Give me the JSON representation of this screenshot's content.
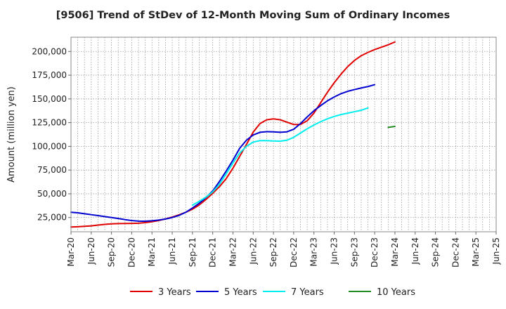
{
  "chart_data": {
    "type": "line",
    "title": "[9506]  Trend of StDev of 12-Month Moving Sum of Ordinary Incomes",
    "xlabel": "",
    "ylabel": "Amount (million yen)",
    "ylim": [
      10000,
      215000
    ],
    "yticks": [
      25000,
      50000,
      75000,
      100000,
      125000,
      150000,
      175000,
      200000
    ],
    "ytick_labels": [
      "25,000",
      "50,000",
      "75,000",
      "100,000",
      "125,000",
      "150,000",
      "175,000",
      "200,000"
    ],
    "xticks": [
      "Mar-20",
      "Jun-20",
      "Sep-20",
      "Dec-20",
      "Mar-21",
      "Jun-21",
      "Sep-21",
      "Dec-21",
      "Mar-22",
      "Jun-22",
      "Sep-22",
      "Dec-22",
      "Mar-23",
      "Jun-23",
      "Sep-23",
      "Dec-23",
      "Mar-24",
      "Jun-24",
      "Sep-24",
      "Dec-24",
      "Mar-25",
      "Jun-25"
    ],
    "grid": true,
    "legend_position": "bottom",
    "series": [
      {
        "name": "3 Years",
        "color": "#e00000",
        "start_index": 0,
        "values": [
          15000,
          15300,
          15700,
          16200,
          17000,
          17800,
          18300,
          18600,
          18700,
          18800,
          19000,
          19600,
          20500,
          21800,
          23500,
          25500,
          27800,
          30500,
          33800,
          38200,
          44000,
          50500,
          57500,
          66000,
          77000,
          89500,
          102000,
          115000,
          124000,
          128000,
          129000,
          128000,
          125500,
          123000,
          123000,
          127000,
          135000,
          146000,
          157000,
          167000,
          176000,
          184000,
          190500,
          195500,
          199000,
          202000,
          204500,
          207000,
          210000
        ]
      },
      {
        "name": "5 Years",
        "color": "#0000d0",
        "start_index": 0,
        "values": [
          30500,
          30000,
          29000,
          28000,
          27000,
          26000,
          25000,
          24000,
          22800,
          21800,
          21200,
          21100,
          21600,
          22300,
          23400,
          25000,
          27200,
          30500,
          35000,
          40000,
          46000,
          53000,
          63000,
          74000,
          85500,
          98000,
          106500,
          112000,
          114800,
          115500,
          115300,
          114800,
          115300,
          118000,
          124000,
          131000,
          137500,
          143000,
          148000,
          152000,
          155500,
          158000,
          159800,
          161500,
          163000,
          165000
        ]
      },
      {
        "name": "7 Years",
        "color": "#00eeee",
        "start_index": 18,
        "values": [
          38000,
          42000,
          46500,
          52000,
          60000,
          71000,
          82500,
          93000,
          100000,
          104500,
          106000,
          106000,
          105700,
          105500,
          106500,
          109500,
          114000,
          118500,
          122500,
          126000,
          129000,
          131500,
          133500,
          135000,
          136500,
          138000,
          140500
        ]
      },
      {
        "name": "10 Years",
        "color": "#228b22",
        "start_index": 47,
        "values": [
          120000,
          121000
        ]
      }
    ]
  }
}
